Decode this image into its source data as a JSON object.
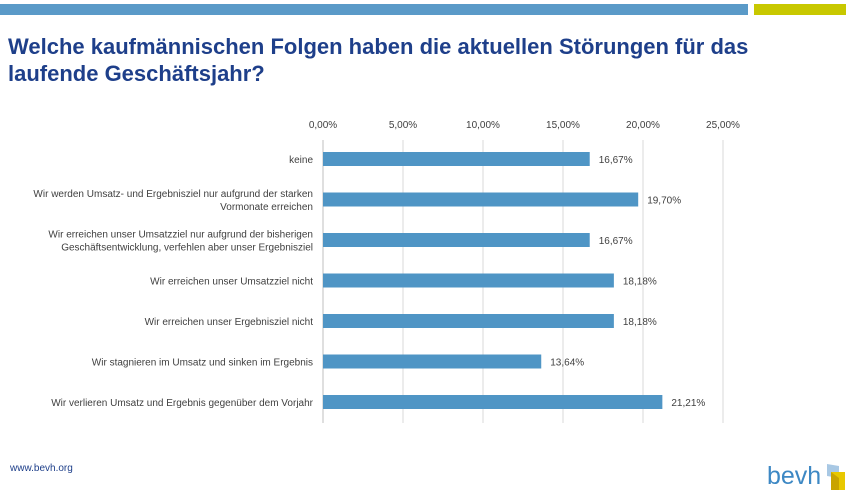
{
  "title": "Welche kaufmännischen Folgen haben die aktuellen Störungen für das laufende Geschäftsjahr?",
  "footer_url": "www.bevh.org",
  "logo_text": "bevh",
  "colors": {
    "bar": "#4f95c5",
    "title": "#1e3f8a",
    "accent_blue": "#5a9ac8",
    "accent_lime": "#c8c800",
    "grid": "#d9d9d9"
  },
  "chart_data": {
    "type": "bar",
    "orientation": "horizontal",
    "categories": [
      "keine",
      "Wir werden Umsatz- und Ergebnisziel nur aufgrund der starken Vormonate erreichen",
      "Wir erreichen unser Umsatzziel nur aufgrund der bisherigen Geschäftsentwicklung, verfehlen aber unser Ergebnisziel",
      "Wir erreichen unser Umsatzziel nicht",
      "Wir erreichen unser Ergebnisziel nicht",
      "Wir stagnieren im Umsatz und sinken im Ergebnis",
      "Wir verlieren Umsatz und Ergebnis gegenüber dem Vorjahr"
    ],
    "category_lines": [
      [
        "keine"
      ],
      [
        "Wir werden Umsatz- und Ergebnisziel nur aufgrund der starken",
        "Vormonate erreichen"
      ],
      [
        "Wir erreichen unser Umsatzziel nur aufgrund der bisherigen",
        "Geschäftsentwicklung, verfehlen aber unser Ergebnisziel"
      ],
      [
        "Wir erreichen unser Umsatzziel nicht"
      ],
      [
        "Wir erreichen unser Ergebnisziel nicht"
      ],
      [
        "Wir stagnieren im Umsatz und sinken im Ergebnis"
      ],
      [
        "Wir verlieren Umsatz und Ergebnis gegenüber dem Vorjahr"
      ]
    ],
    "values": [
      16.67,
      19.7,
      16.67,
      18.18,
      18.18,
      13.64,
      21.21
    ],
    "value_labels": [
      "16,67%",
      "19,70%",
      "16,67%",
      "18,18%",
      "18,18%",
      "13,64%",
      "21,21%"
    ],
    "ticks": [
      0,
      5,
      10,
      15,
      20,
      25
    ],
    "tick_labels": [
      "0,00%",
      "5,00%",
      "10,00%",
      "15,00%",
      "20,00%",
      "25,00%"
    ],
    "xlim": [
      0,
      25
    ],
    "axis_position": "top",
    "grid": true,
    "legend": "none"
  }
}
